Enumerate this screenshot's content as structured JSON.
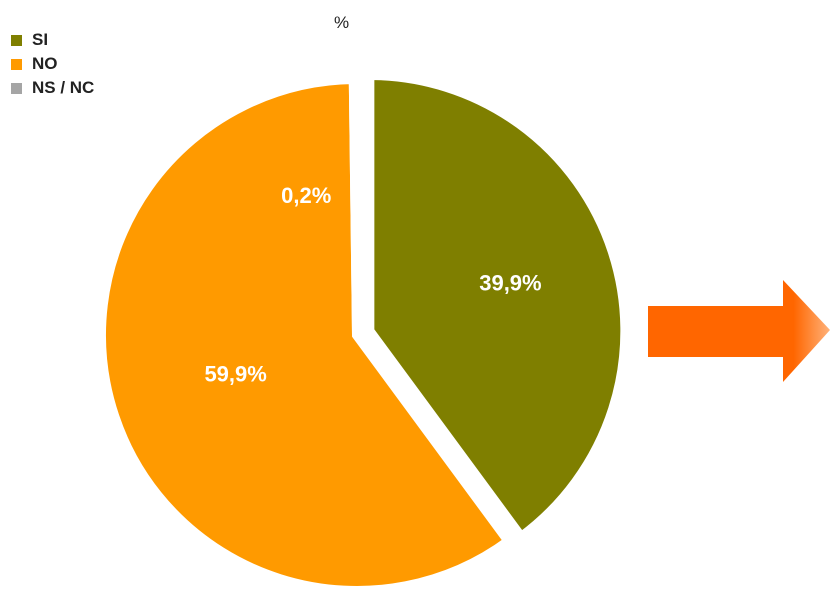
{
  "chart_data": {
    "type": "pie",
    "title": "%",
    "categories": [
      "SI",
      "NO",
      "NS / NC"
    ],
    "values": [
      39.9,
      59.9,
      0.2
    ],
    "data_labels": [
      "39,9%",
      "59,9%",
      "0,2%"
    ],
    "colors": [
      "#7f7f00",
      "#ff9a00",
      "#a5a5a5"
    ],
    "label_color": "#ffffff",
    "legend": "top-left"
  },
  "arrow": {
    "icon": "right-arrow-icon",
    "color": "#ff6600"
  }
}
